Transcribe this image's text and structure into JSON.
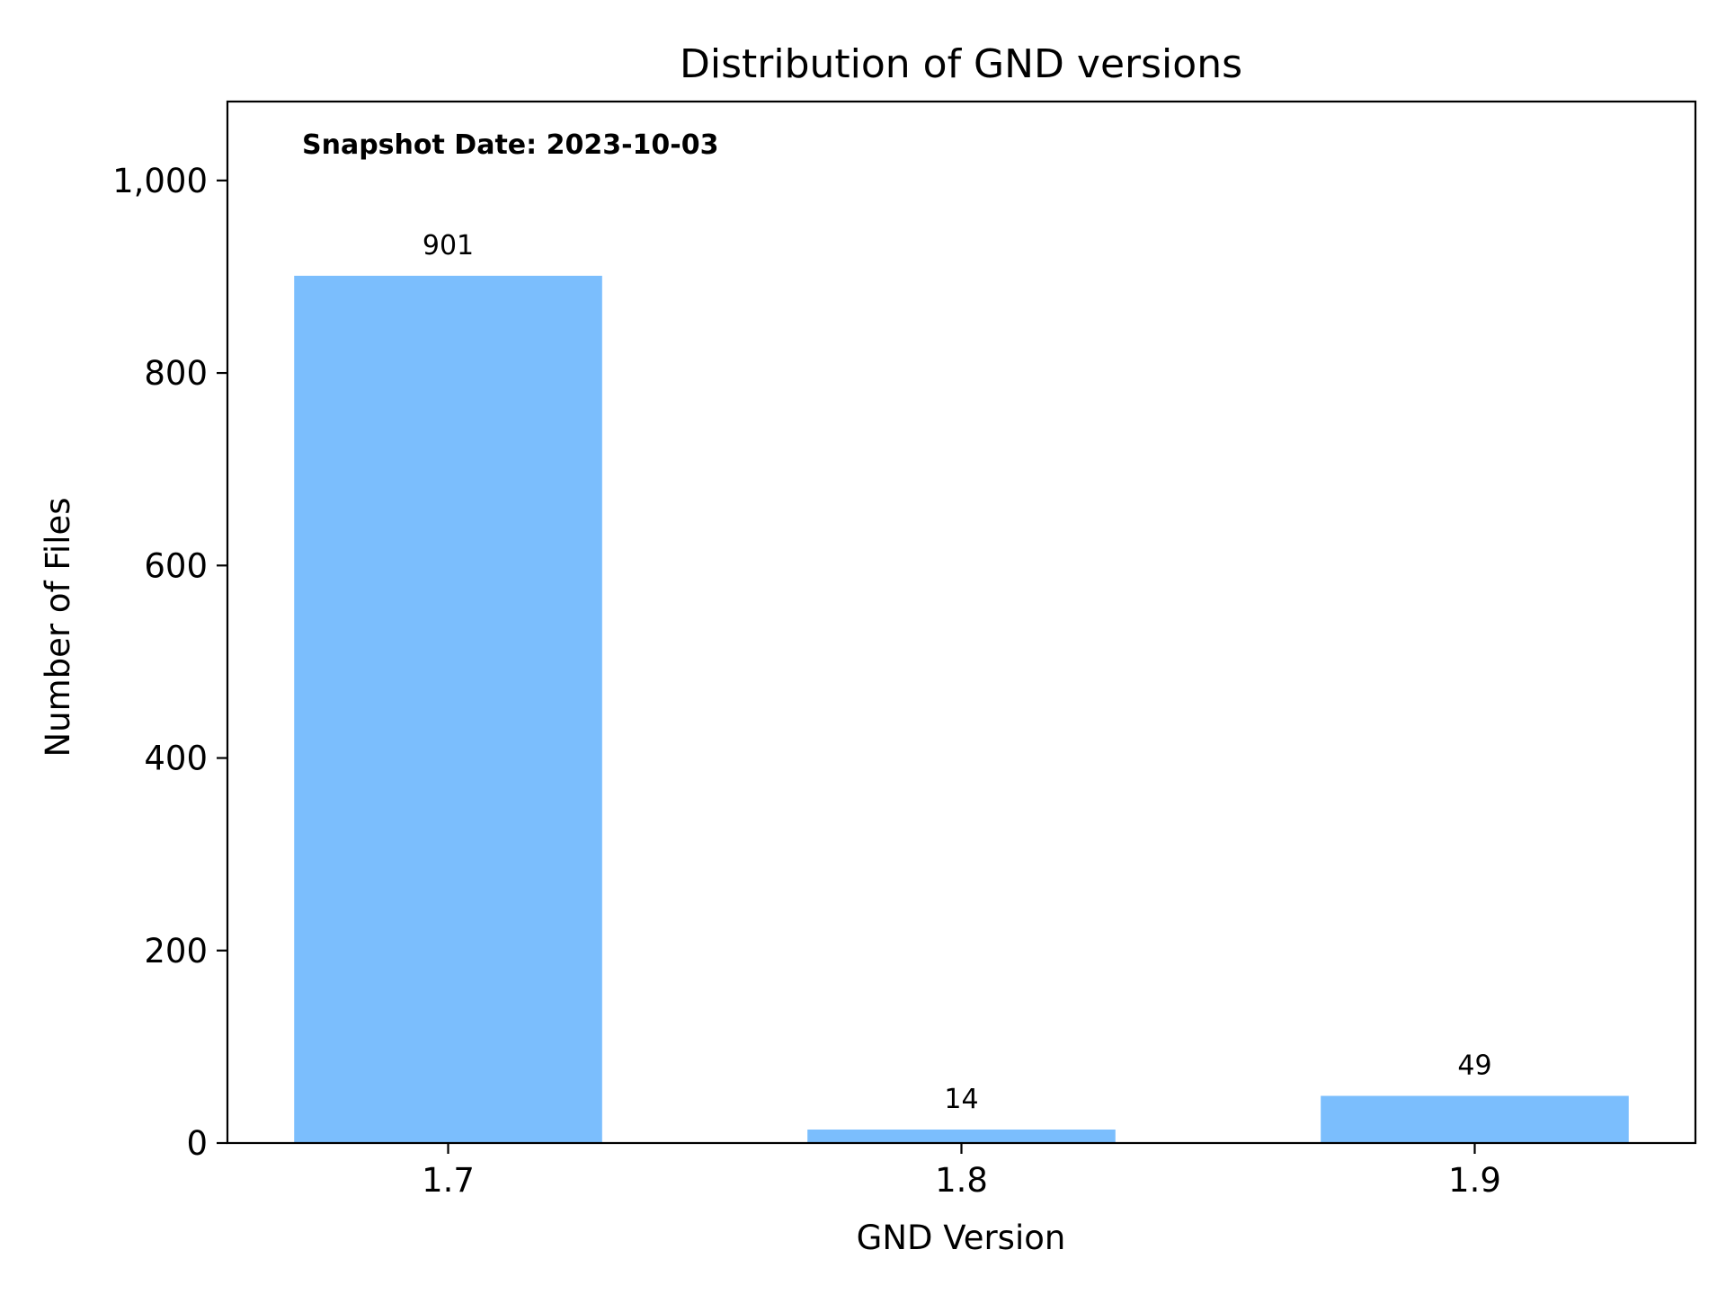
{
  "chart_data": {
    "type": "bar",
    "title": "Distribution of GND versions",
    "xlabel": "GND Version",
    "ylabel": "Number of Files",
    "annotation": "Snapshot Date: 2023-10-03",
    "categories": [
      "1.7",
      "1.8",
      "1.9"
    ],
    "values": [
      901,
      14,
      49
    ],
    "data_labels": [
      "901",
      "14",
      "49"
    ],
    "yticks": [
      0,
      200,
      400,
      600,
      800,
      1000
    ],
    "ytick_labels": [
      "0",
      "200",
      "400",
      "600",
      "800",
      "1,000"
    ],
    "ylim": [
      0,
      1082
    ],
    "grid": false,
    "legend": "none",
    "bar_color": "#7bbefd"
  }
}
